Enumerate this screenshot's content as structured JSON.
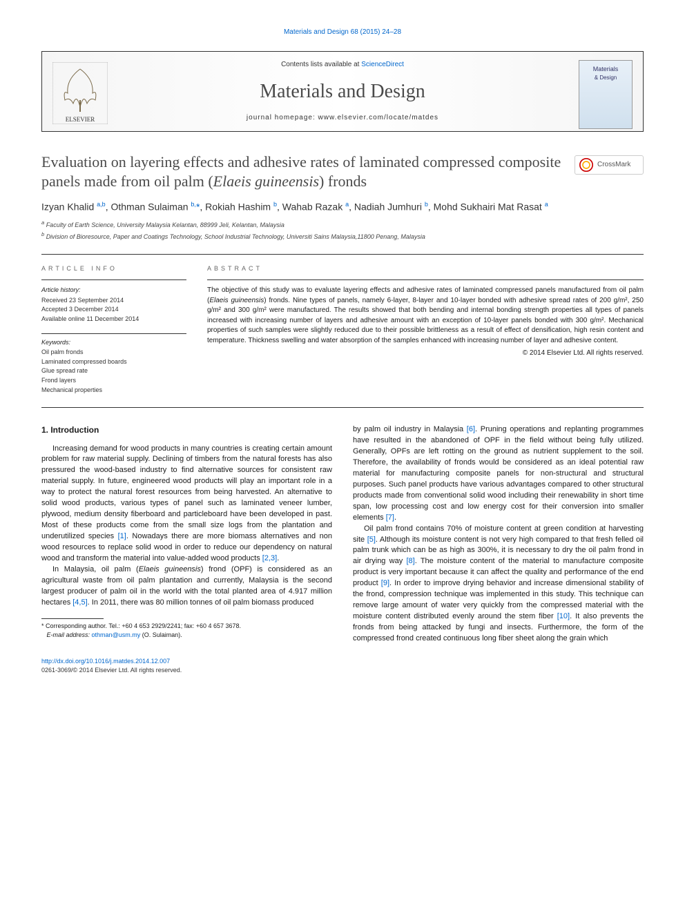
{
  "journal_ref": "Materials and Design 68 (2015) 24–28",
  "masthead": {
    "contents_prefix": "Contents lists available at ",
    "contents_link": "ScienceDirect",
    "journal_title": "Materials and Design",
    "homepage_prefix": "journal homepage: ",
    "homepage_url": "www.elsevier.com/locate/matdes",
    "publisher": "ELSEVIER",
    "cover_line1": "Materials",
    "cover_line2": "& Design"
  },
  "article": {
    "title_pre": "Evaluation on layering effects and adhesive rates of laminated compressed composite panels made from oil palm (",
    "title_italic": "Elaeis guineensis",
    "title_post": ") fronds",
    "crossmark_label": "CrossMark"
  },
  "authors_html": "Izyan Khalid <sup>a,b</sup>, Othman Sulaiman <sup>b,</sup><span class='corr'>*</span>, Rokiah Hashim <sup>b</sup>, Wahab Razak <sup>a</sup>, Nadiah Jumhuri <sup>b</sup>, Mohd Sukhairi Mat Rasat <sup>a</sup>",
  "affiliations": {
    "a": "Faculty of Earth Science, University Malaysia Kelantan, 88999 Jeli, Kelantan, Malaysia",
    "b": "Division of Bioresource, Paper and Coatings Technology, School Industrial Technology, Universiti Sains Malaysia,11800 Penang, Malaysia"
  },
  "info": {
    "heading": "ARTICLE INFO",
    "history_head": "Article history:",
    "received": "Received 23 September 2014",
    "accepted": "Accepted 3 December 2014",
    "online": "Available online 11 December 2014",
    "keywords_head": "Keywords:",
    "keywords": [
      "Oil palm fronds",
      "Laminated compressed boards",
      "Glue spread rate",
      "Frond layers",
      "Mechanical properties"
    ]
  },
  "abstract": {
    "heading": "ABSTRACT",
    "text_parts": {
      "p1": "The objective of this study was to evaluate layering effects and adhesive rates of laminated compressed panels manufactured from oil palm (",
      "it1": "Elaeis guineensis",
      "p2": ") fronds. Nine types of panels, namely 6-layer, 8-layer and 10-layer bonded with adhesive spread rates of 200 g/m², 250 g/m² and 300 g/m² were manufactured. The results showed that both bending and internal bonding strength properties all types of panels increased with increasing number of layers and adhesive amount with an exception of 10-layer panels bonded with 300 g/m². Mechanical properties of such samples were slightly reduced due to their possible brittleness as a result of effect of densification, high resin content and temperature. Thickness swelling and water absorption of the samples enhanced with increasing number of layer and adhesive content."
    },
    "copyright": "© 2014 Elsevier Ltd. All rights reserved."
  },
  "body": {
    "section_heading": "1. Introduction",
    "para1_a": "Increasing demand for wood products in many countries is creating certain amount problem for raw material supply. Declining of timbers from the natural forests has also pressured the wood-based industry to find alternative sources for consistent raw material supply. In future, engineered wood products will play an important role in a way to protect the natural forest resources from being harvested. An alternative to solid wood products, various types of panel such as laminated veneer lumber, plywood, medium density fiberboard and particleboard have been developed in past. Most of these products come from the small size logs from the plantation and underutilized species ",
    "cite1": "[1]",
    "para1_b": ". Nowadays there are more biomass alternatives and non wood resources to replace solid wood in order to reduce our dependency on natural wood and transform the material into value-added wood products ",
    "cite2": "[2,3]",
    "para1_c": ".",
    "para2_a": "In Malaysia, oil palm (",
    "para2_it": "Elaeis guineensis",
    "para2_b": ") frond (OPF) is considered as an agricultural waste from oil palm plantation and currently, Malaysia is the second largest producer of palm oil in the world with the total planted area of 4.917 million hectares ",
    "cite3": "[4,5]",
    "para2_c": ". In 2011, there was 80 million tonnes of oil palm biomass produced",
    "para2top_a": "by palm oil industry in Malaysia ",
    "cite4": "[6]",
    "para2top_b": ". Pruning operations and replanting programmes have resulted in the abandoned of OPF in the field without being fully utilized. Generally, OPFs are left rotting on the ground as nutrient supplement to the soil. Therefore, the availability of fronds would be considered as an ideal potential raw material for manufacturing composite panels for non-structural and structural purposes. Such panel products have various advantages compared to other structural products made from conventional solid wood including their renewability in short time span, low processing cost and low energy cost for their conversion into smaller elements ",
    "cite5": "[7]",
    "para2top_c": ".",
    "para3_a": "Oil palm frond contains 70% of moisture content at green condition at harvesting site ",
    "cite6": "[5]",
    "para3_b": ". Although its moisture content is not very high compared to that fresh felled oil palm trunk which can be as high as 300%, it is necessary to dry the oil palm frond in air drying way ",
    "cite7": "[8]",
    "para3_c": ". The moisture content of the material to manufacture composite product is very important because it can affect the quality and performance of the end product ",
    "cite8": "[9]",
    "para3_d": ". In order to improve drying behavior and increase dimensional stability of the frond, compression technique was implemented in this study. This technique can remove large amount of water very quickly from the compressed material with the moisture content distributed evenly around the stem fiber ",
    "cite9": "[10]",
    "para3_e": ". It also prevents the fronds from being attacked by fungi and insects. Furthermore, the form of the compressed frond created continuous long fiber sheet along the grain which"
  },
  "footnote": {
    "corr": "* Corresponding author. Tel.: +60 4 653 2929/2241; fax: +60 4 657 3678.",
    "email_label": "E-mail address: ",
    "email": "othman@usm.my",
    "email_suffix": " (O. Sulaiman)."
  },
  "footer": {
    "doi": "http://dx.doi.org/10.1016/j.matdes.2014.12.007",
    "issn_copyright": "0261-3069/© 2014 Elsevier Ltd. All rights reserved."
  },
  "colors": {
    "link": "#0066cc",
    "text": "#1a1a1a",
    "heading_gray": "#4a4a4a",
    "rule": "#333333"
  }
}
